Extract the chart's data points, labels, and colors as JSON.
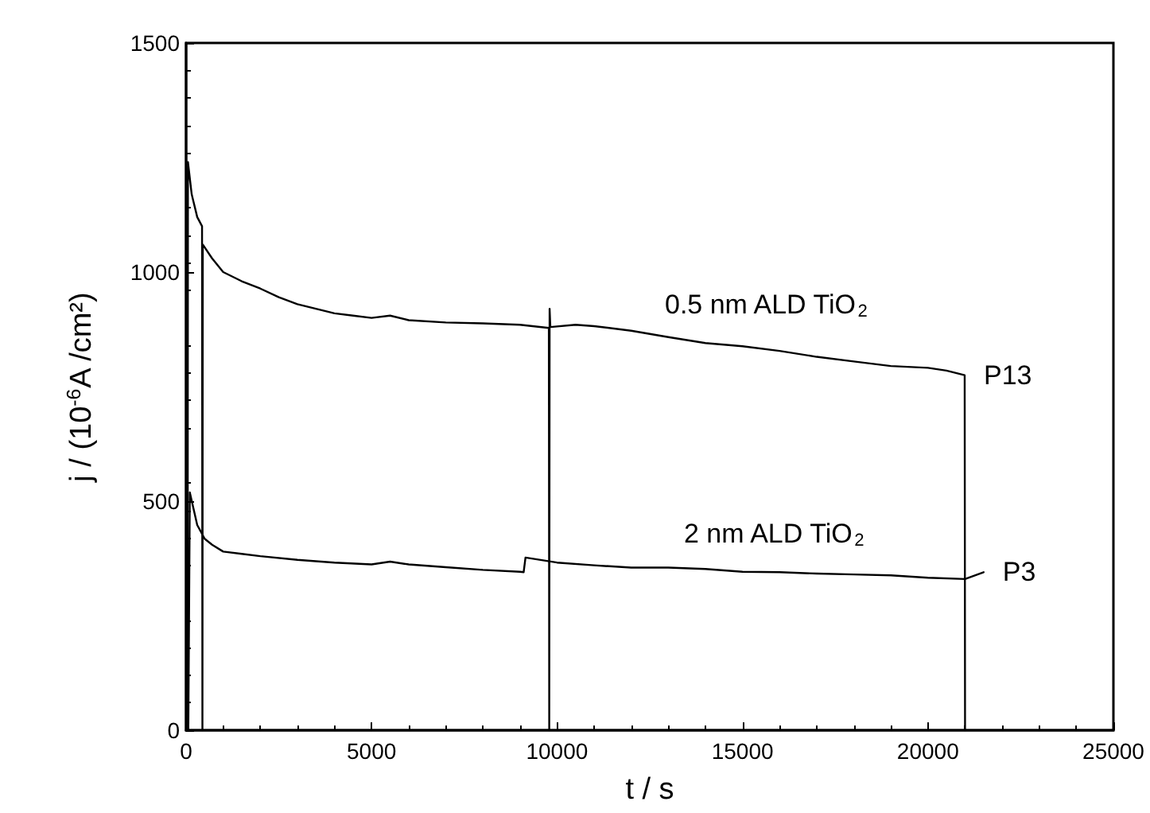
{
  "chart_data": {
    "type": "line",
    "xlabel": "t / s",
    "ylabel": "j / (10$^{-6}$A /cm²)",
    "xlim": [
      0,
      25000
    ],
    "xticks": [
      0,
      5000,
      10000,
      15000,
      20000,
      25000
    ],
    "ylim": [
      0,
      1500
    ],
    "yticks": [
      0,
      500,
      1000,
      1500
    ],
    "grid": false,
    "legend": false,
    "marker": "none",
    "line_style": "solid",
    "annotations": [
      "0.5 nm ALD TiO$_{2}$",
      "2 nm ALD TiO$_{2}$"
    ],
    "series": [
      {
        "name": "P13",
        "color": "#000000",
        "x": [
          40,
          50,
          150,
          300,
          430,
          440,
          450,
          700,
          1000,
          1500,
          2000,
          2500,
          3000,
          3500,
          4000,
          4500,
          5000,
          5500,
          6000,
          7000,
          8000,
          9000,
          9780,
          9790,
          9800,
          9820,
          10500,
          11000,
          12000,
          13000,
          14000,
          15000,
          16000,
          17000,
          18000,
          19000,
          20000,
          20500,
          20990,
          21000
        ],
        "values": [
          0,
          1240,
          1170,
          1120,
          1100,
          0,
          1060,
          1030,
          1000,
          980,
          964,
          945,
          930,
          920,
          910,
          905,
          900,
          905,
          895,
          890,
          888,
          885,
          878,
          0,
          920,
          880,
          885,
          882,
          872,
          858,
          845,
          838,
          828,
          815,
          805,
          795,
          791,
          785,
          775,
          0
        ]
      },
      {
        "name": "P3",
        "color": "#000000",
        "x": [
          60,
          100,
          300,
          500,
          700,
          1000,
          1500,
          2000,
          3000,
          4000,
          5000,
          5500,
          6000,
          7000,
          8000,
          9000,
          9100,
          9150,
          10000,
          11000,
          12000,
          13000,
          14000,
          15000,
          16000,
          17000,
          18000,
          19000,
          20000,
          21000,
          21500
        ],
        "values": [
          0,
          519,
          448,
          418,
          405,
          390,
          385,
          380,
          372,
          366,
          362,
          368,
          362,
          356,
          350,
          346,
          345,
          377,
          366,
          360,
          355,
          355,
          352,
          346,
          345,
          342,
          340,
          338,
          333,
          330,
          345
        ]
      }
    ]
  }
}
